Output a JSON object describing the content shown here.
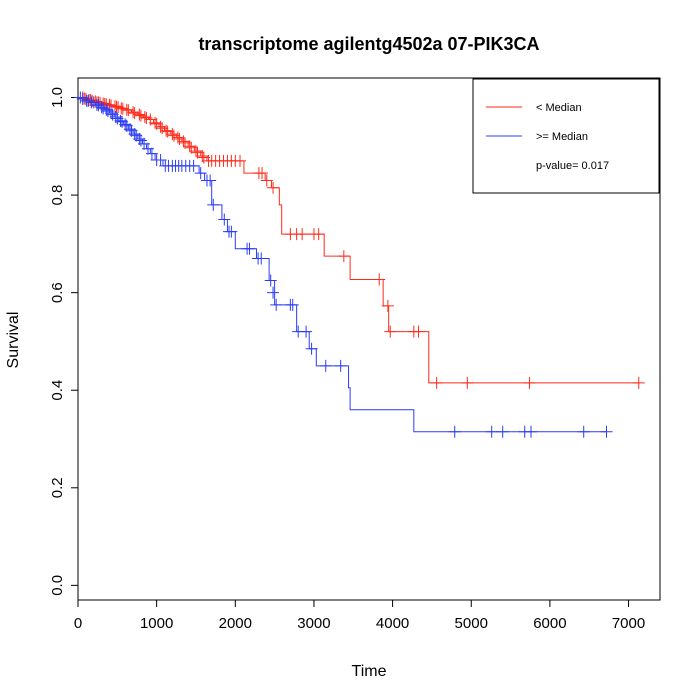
{
  "chart_data": {
    "type": "line",
    "title": "transcriptome agilentg4502a 07-PIK3CA",
    "xlabel": "Time",
    "ylabel": "Survival",
    "xlim": [
      0,
      7400
    ],
    "ylim": [
      -0.03,
      1.04
    ],
    "x_ticks": [
      0,
      1000,
      2000,
      3000,
      4000,
      5000,
      6000,
      7000
    ],
    "y_ticks": [
      0.0,
      0.2,
      0.4,
      0.6,
      0.8,
      1.0
    ],
    "x_tick_labels": [
      "0",
      "1000",
      "2000",
      "3000",
      "4000",
      "5000",
      "6000",
      "7000"
    ],
    "y_tick_labels": [
      "0.0",
      "0.2",
      "0.4",
      "0.6",
      "0.8",
      "1.0"
    ],
    "grid": false,
    "legend_position": "top-right",
    "legend_note": "p-value= 0.017",
    "series": [
      {
        "name": "< Median",
        "color": "#ff2a1a",
        "steps": [
          [
            0,
            1.0
          ],
          [
            50,
            0.998
          ],
          [
            120,
            0.995
          ],
          [
            200,
            0.992
          ],
          [
            300,
            0.988
          ],
          [
            380,
            0.985
          ],
          [
            450,
            0.982
          ],
          [
            530,
            0.978
          ],
          [
            600,
            0.975
          ],
          [
            680,
            0.97
          ],
          [
            760,
            0.965
          ],
          [
            830,
            0.96
          ],
          [
            900,
            0.955
          ],
          [
            960,
            0.948
          ],
          [
            1030,
            0.94
          ],
          [
            1100,
            0.932
          ],
          [
            1180,
            0.925
          ],
          [
            1250,
            0.918
          ],
          [
            1320,
            0.91
          ],
          [
            1400,
            0.9
          ],
          [
            1480,
            0.89
          ],
          [
            1560,
            0.88
          ],
          [
            1640,
            0.87
          ],
          [
            2110,
            0.845
          ],
          [
            2380,
            0.83
          ],
          [
            2460,
            0.815
          ],
          [
            2560,
            0.78
          ],
          [
            2590,
            0.72
          ],
          [
            3130,
            0.675
          ],
          [
            3460,
            0.627
          ],
          [
            3880,
            0.573
          ],
          [
            3950,
            0.52
          ],
          [
            4460,
            0.415
          ],
          [
            7130,
            0.415
          ]
        ],
        "censored": [
          [
            60,
            1.0
          ],
          [
            80,
            0.998
          ],
          [
            100,
            0.997
          ],
          [
            140,
            0.995
          ],
          [
            160,
            0.995
          ],
          [
            180,
            0.993
          ],
          [
            220,
            0.992
          ],
          [
            240,
            0.99
          ],
          [
            260,
            0.99
          ],
          [
            280,
            0.989
          ],
          [
            320,
            0.988
          ],
          [
            340,
            0.987
          ],
          [
            360,
            0.986
          ],
          [
            400,
            0.985
          ],
          [
            420,
            0.984
          ],
          [
            470,
            0.982
          ],
          [
            490,
            0.981
          ],
          [
            510,
            0.98
          ],
          [
            550,
            0.978
          ],
          [
            570,
            0.977
          ],
          [
            620,
            0.975
          ],
          [
            640,
            0.974
          ],
          [
            700,
            0.97
          ],
          [
            720,
            0.968
          ],
          [
            780,
            0.965
          ],
          [
            800,
            0.963
          ],
          [
            850,
            0.96
          ],
          [
            870,
            0.958
          ],
          [
            920,
            0.955
          ],
          [
            980,
            0.948
          ],
          [
            1000,
            0.946
          ],
          [
            1050,
            0.94
          ],
          [
            1070,
            0.937
          ],
          [
            1120,
            0.932
          ],
          [
            1140,
            0.93
          ],
          [
            1200,
            0.925
          ],
          [
            1220,
            0.922
          ],
          [
            1270,
            0.918
          ],
          [
            1290,
            0.915
          ],
          [
            1340,
            0.91
          ],
          [
            1360,
            0.907
          ],
          [
            1420,
            0.9
          ],
          [
            1440,
            0.897
          ],
          [
            1500,
            0.89
          ],
          [
            1520,
            0.887
          ],
          [
            1580,
            0.88
          ],
          [
            1600,
            0.877
          ],
          [
            1660,
            0.87
          ],
          [
            1700,
            0.87
          ],
          [
            1750,
            0.87
          ],
          [
            1800,
            0.87
          ],
          [
            1850,
            0.87
          ],
          [
            1900,
            0.87
          ],
          [
            1950,
            0.87
          ],
          [
            2000,
            0.87
          ],
          [
            2060,
            0.87
          ],
          [
            2300,
            0.845
          ],
          [
            2340,
            0.845
          ],
          [
            2400,
            0.83
          ],
          [
            2480,
            0.815
          ],
          [
            2700,
            0.72
          ],
          [
            2780,
            0.72
          ],
          [
            2850,
            0.72
          ],
          [
            3000,
            0.72
          ],
          [
            3060,
            0.72
          ],
          [
            3380,
            0.675
          ],
          [
            3830,
            0.627
          ],
          [
            3940,
            0.573
          ],
          [
            3970,
            0.52
          ],
          [
            4270,
            0.52
          ],
          [
            4330,
            0.52
          ],
          [
            4560,
            0.415
          ],
          [
            4950,
            0.415
          ],
          [
            5740,
            0.415
          ],
          [
            7130,
            0.415
          ]
        ]
      },
      {
        "name": ">= Median",
        "color": "#2b3cf5",
        "steps": [
          [
            0,
            1.0
          ],
          [
            40,
            0.997
          ],
          [
            90,
            0.993
          ],
          [
            150,
            0.99
          ],
          [
            220,
            0.985
          ],
          [
            280,
            0.98
          ],
          [
            340,
            0.975
          ],
          [
            400,
            0.968
          ],
          [
            460,
            0.96
          ],
          [
            520,
            0.952
          ],
          [
            580,
            0.945
          ],
          [
            640,
            0.935
          ],
          [
            700,
            0.925
          ],
          [
            760,
            0.915
          ],
          [
            820,
            0.905
          ],
          [
            870,
            0.895
          ],
          [
            920,
            0.885
          ],
          [
            980,
            0.872
          ],
          [
            1080,
            0.86
          ],
          [
            1540,
            0.845
          ],
          [
            1610,
            0.83
          ],
          [
            1700,
            0.78
          ],
          [
            1830,
            0.75
          ],
          [
            1900,
            0.725
          ],
          [
            2000,
            0.69
          ],
          [
            2270,
            0.67
          ],
          [
            2430,
            0.625
          ],
          [
            2500,
            0.575
          ],
          [
            2780,
            0.52
          ],
          [
            2940,
            0.485
          ],
          [
            3030,
            0.45
          ],
          [
            3440,
            0.405
          ],
          [
            3460,
            0.36
          ],
          [
            4270,
            0.315
          ],
          [
            6720,
            0.315
          ]
        ],
        "censored": [
          [
            30,
            1.0
          ],
          [
            60,
            0.997
          ],
          [
            110,
            0.993
          ],
          [
            130,
            0.993
          ],
          [
            170,
            0.99
          ],
          [
            200,
            0.99
          ],
          [
            240,
            0.985
          ],
          [
            260,
            0.984
          ],
          [
            300,
            0.98
          ],
          [
            320,
            0.978
          ],
          [
            360,
            0.975
          ],
          [
            380,
            0.972
          ],
          [
            420,
            0.968
          ],
          [
            440,
            0.965
          ],
          [
            480,
            0.96
          ],
          [
            500,
            0.957
          ],
          [
            540,
            0.952
          ],
          [
            560,
            0.95
          ],
          [
            600,
            0.945
          ],
          [
            620,
            0.942
          ],
          [
            660,
            0.935
          ],
          [
            680,
            0.932
          ],
          [
            720,
            0.925
          ],
          [
            740,
            0.922
          ],
          [
            780,
            0.915
          ],
          [
            800,
            0.912
          ],
          [
            840,
            0.905
          ],
          [
            890,
            0.895
          ],
          [
            940,
            0.885
          ],
          [
            1000,
            0.872
          ],
          [
            1050,
            0.872
          ],
          [
            1110,
            0.86
          ],
          [
            1150,
            0.86
          ],
          [
            1200,
            0.86
          ],
          [
            1240,
            0.86
          ],
          [
            1280,
            0.86
          ],
          [
            1320,
            0.86
          ],
          [
            1370,
            0.86
          ],
          [
            1420,
            0.86
          ],
          [
            1470,
            0.86
          ],
          [
            1560,
            0.845
          ],
          [
            1640,
            0.83
          ],
          [
            1680,
            0.83
          ],
          [
            1720,
            0.78
          ],
          [
            1860,
            0.75
          ],
          [
            1920,
            0.725
          ],
          [
            1950,
            0.725
          ],
          [
            2150,
            0.69
          ],
          [
            2180,
            0.69
          ],
          [
            2290,
            0.67
          ],
          [
            2330,
            0.67
          ],
          [
            2450,
            0.625
          ],
          [
            2480,
            0.6
          ],
          [
            2520,
            0.575
          ],
          [
            2700,
            0.575
          ],
          [
            2730,
            0.575
          ],
          [
            2800,
            0.52
          ],
          [
            2900,
            0.52
          ],
          [
            2970,
            0.485
          ],
          [
            3150,
            0.45
          ],
          [
            3340,
            0.45
          ],
          [
            4790,
            0.315
          ],
          [
            5260,
            0.315
          ],
          [
            5400,
            0.315
          ],
          [
            5680,
            0.315
          ],
          [
            5760,
            0.315
          ],
          [
            6430,
            0.315
          ],
          [
            6720,
            0.315
          ]
        ]
      }
    ]
  }
}
